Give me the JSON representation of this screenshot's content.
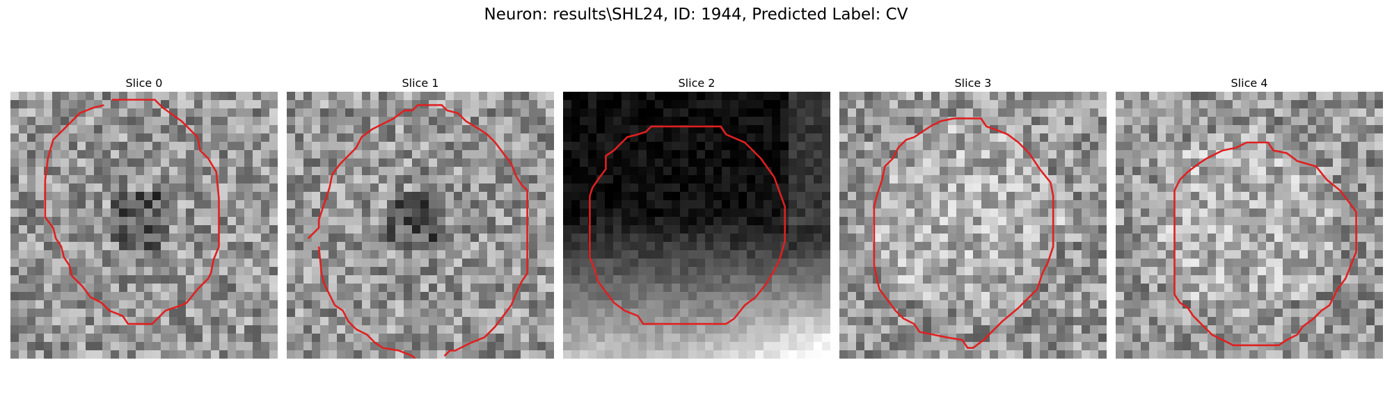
{
  "figure": {
    "title": "Neuron: results\\SHL24, ID: 1944, Predicted Label: CV"
  },
  "panels": [
    {
      "title": "Slice 0",
      "texture": "gray-noise-with-dark-center-texture",
      "contour_color": "#e02020",
      "contour": [
        [
          0.38,
          0.03
        ],
        [
          0.54,
          0.03
        ],
        [
          0.57,
          0.06
        ],
        [
          0.64,
          0.11
        ],
        [
          0.7,
          0.17
        ],
        [
          0.71,
          0.22
        ],
        [
          0.74,
          0.25
        ],
        [
          0.77,
          0.3
        ],
        [
          0.78,
          0.4
        ],
        [
          0.78,
          0.58
        ],
        [
          0.76,
          0.63
        ],
        [
          0.75,
          0.68
        ],
        [
          0.74,
          0.7
        ],
        [
          0.7,
          0.74
        ],
        [
          0.66,
          0.79
        ],
        [
          0.64,
          0.8
        ],
        [
          0.58,
          0.82
        ],
        [
          0.55,
          0.85
        ],
        [
          0.53,
          0.87
        ],
        [
          0.44,
          0.87
        ],
        [
          0.42,
          0.84
        ],
        [
          0.37,
          0.82
        ],
        [
          0.34,
          0.79
        ],
        [
          0.3,
          0.77
        ],
        [
          0.27,
          0.73
        ],
        [
          0.23,
          0.69
        ],
        [
          0.22,
          0.65
        ],
        [
          0.2,
          0.62
        ],
        [
          0.19,
          0.58
        ],
        [
          0.17,
          0.55
        ],
        [
          0.16,
          0.51
        ],
        [
          0.13,
          0.47
        ],
        [
          0.13,
          0.33
        ],
        [
          0.14,
          0.25
        ],
        [
          0.16,
          0.18
        ],
        [
          0.18,
          0.16
        ],
        [
          0.22,
          0.12
        ],
        [
          0.26,
          0.08
        ],
        [
          0.31,
          0.06
        ],
        [
          0.35,
          0.05
        ]
      ]
    },
    {
      "title": "Slice 1",
      "texture": "gray-noise-with-dark-center-texture",
      "contour_color": "#e02020",
      "contour": [
        [
          0.44,
          0.07
        ],
        [
          0.47,
          0.07
        ],
        [
          0.49,
          0.05
        ],
        [
          0.58,
          0.05
        ],
        [
          0.6,
          0.07
        ],
        [
          0.64,
          0.08
        ],
        [
          0.67,
          0.11
        ],
        [
          0.72,
          0.14
        ],
        [
          0.75,
          0.16
        ],
        [
          0.78,
          0.19
        ],
        [
          0.81,
          0.23
        ],
        [
          0.84,
          0.27
        ],
        [
          0.86,
          0.32
        ],
        [
          0.88,
          0.35
        ],
        [
          0.9,
          0.37
        ],
        [
          0.9,
          0.68
        ],
        [
          0.88,
          0.71
        ],
        [
          0.86,
          0.75
        ],
        [
          0.84,
          0.8
        ],
        [
          0.81,
          0.84
        ],
        [
          0.78,
          0.88
        ],
        [
          0.74,
          0.92
        ],
        [
          0.69,
          0.94
        ],
        [
          0.63,
          0.97
        ],
        [
          0.61,
          0.97
        ],
        [
          0.59,
          0.99
        ]
      ]
    },
    {
      "title": "Slice 2",
      "texture": "dark-top-bright-bottom-gradient-texture",
      "contour_color": "#e02020",
      "contour": [
        [
          0.33,
          0.13
        ],
        [
          0.59,
          0.13
        ],
        [
          0.61,
          0.16
        ],
        [
          0.68,
          0.19
        ],
        [
          0.74,
          0.25
        ],
        [
          0.79,
          0.32
        ],
        [
          0.83,
          0.43
        ],
        [
          0.83,
          0.56
        ],
        [
          0.81,
          0.63
        ],
        [
          0.79,
          0.67
        ],
        [
          0.76,
          0.72
        ],
        [
          0.72,
          0.77
        ],
        [
          0.68,
          0.8
        ],
        [
          0.64,
          0.85
        ],
        [
          0.61,
          0.87
        ],
        [
          0.53,
          0.87
        ],
        [
          0.3,
          0.87
        ],
        [
          0.28,
          0.84
        ],
        [
          0.23,
          0.82
        ],
        [
          0.19,
          0.79
        ],
        [
          0.16,
          0.75
        ],
        [
          0.13,
          0.71
        ],
        [
          0.12,
          0.67
        ],
        [
          0.1,
          0.62
        ],
        [
          0.1,
          0.39
        ],
        [
          0.11,
          0.36
        ],
        [
          0.13,
          0.33
        ],
        [
          0.16,
          0.29
        ],
        [
          0.16,
          0.24
        ],
        [
          0.19,
          0.22
        ],
        [
          0.21,
          0.2
        ],
        [
          0.24,
          0.17
        ],
        [
          0.28,
          0.16
        ],
        [
          0.31,
          0.15
        ]
      ]
    },
    {
      "title": "Slice 3",
      "texture": "bright-gray-noise-texture",
      "contour_color": "#e02020",
      "contour": [
        [
          0.45,
          0.1
        ],
        [
          0.53,
          0.1
        ],
        [
          0.55,
          0.13
        ],
        [
          0.58,
          0.14
        ],
        [
          0.63,
          0.16
        ],
        [
          0.67,
          0.19
        ],
        [
          0.71,
          0.23
        ],
        [
          0.75,
          0.29
        ],
        [
          0.79,
          0.34
        ],
        [
          0.8,
          0.39
        ],
        [
          0.8,
          0.58
        ],
        [
          0.78,
          0.64
        ],
        [
          0.76,
          0.68
        ],
        [
          0.74,
          0.74
        ],
        [
          0.71,
          0.77
        ],
        [
          0.67,
          0.81
        ],
        [
          0.61,
          0.86
        ],
        [
          0.57,
          0.9
        ],
        [
          0.54,
          0.93
        ],
        [
          0.5,
          0.96
        ],
        [
          0.48,
          0.96
        ],
        [
          0.46,
          0.93
        ],
        [
          0.4,
          0.92
        ],
        [
          0.35,
          0.91
        ],
        [
          0.3,
          0.9
        ],
        [
          0.28,
          0.87
        ],
        [
          0.24,
          0.85
        ],
        [
          0.21,
          0.82
        ],
        [
          0.18,
          0.78
        ],
        [
          0.15,
          0.74
        ],
        [
          0.14,
          0.7
        ],
        [
          0.13,
          0.65
        ],
        [
          0.13,
          0.43
        ],
        [
          0.14,
          0.39
        ],
        [
          0.16,
          0.33
        ],
        [
          0.17,
          0.28
        ],
        [
          0.2,
          0.25
        ],
        [
          0.22,
          0.21
        ],
        [
          0.25,
          0.18
        ],
        [
          0.28,
          0.17
        ],
        [
          0.31,
          0.15
        ],
        [
          0.34,
          0.13
        ],
        [
          0.38,
          0.11
        ],
        [
          0.43,
          0.1
        ]
      ]
    },
    {
      "title": "Slice 4",
      "texture": "bright-gray-noise-texture",
      "contour_color": "#e02020",
      "contour": [
        [
          0.49,
          0.19
        ],
        [
          0.57,
          0.19
        ],
        [
          0.59,
          0.22
        ],
        [
          0.64,
          0.23
        ],
        [
          0.68,
          0.26
        ],
        [
          0.75,
          0.28
        ],
        [
          0.79,
          0.33
        ],
        [
          0.84,
          0.37
        ],
        [
          0.87,
          0.41
        ],
        [
          0.9,
          0.45
        ],
        [
          0.9,
          0.6
        ],
        [
          0.88,
          0.65
        ],
        [
          0.86,
          0.7
        ],
        [
          0.83,
          0.74
        ],
        [
          0.8,
          0.8
        ],
        [
          0.77,
          0.82
        ],
        [
          0.74,
          0.85
        ],
        [
          0.7,
          0.88
        ],
        [
          0.68,
          0.91
        ],
        [
          0.64,
          0.93
        ],
        [
          0.61,
          0.95
        ],
        [
          0.52,
          0.95
        ],
        [
          0.44,
          0.95
        ],
        [
          0.4,
          0.93
        ],
        [
          0.36,
          0.91
        ],
        [
          0.33,
          0.88
        ],
        [
          0.29,
          0.84
        ],
        [
          0.27,
          0.81
        ],
        [
          0.24,
          0.79
        ],
        [
          0.22,
          0.76
        ],
        [
          0.22,
          0.37
        ],
        [
          0.24,
          0.33
        ],
        [
          0.27,
          0.3
        ],
        [
          0.31,
          0.27
        ],
        [
          0.34,
          0.25
        ],
        [
          0.38,
          0.23
        ],
        [
          0.4,
          0.22
        ],
        [
          0.45,
          0.21
        ]
      ]
    }
  ]
}
